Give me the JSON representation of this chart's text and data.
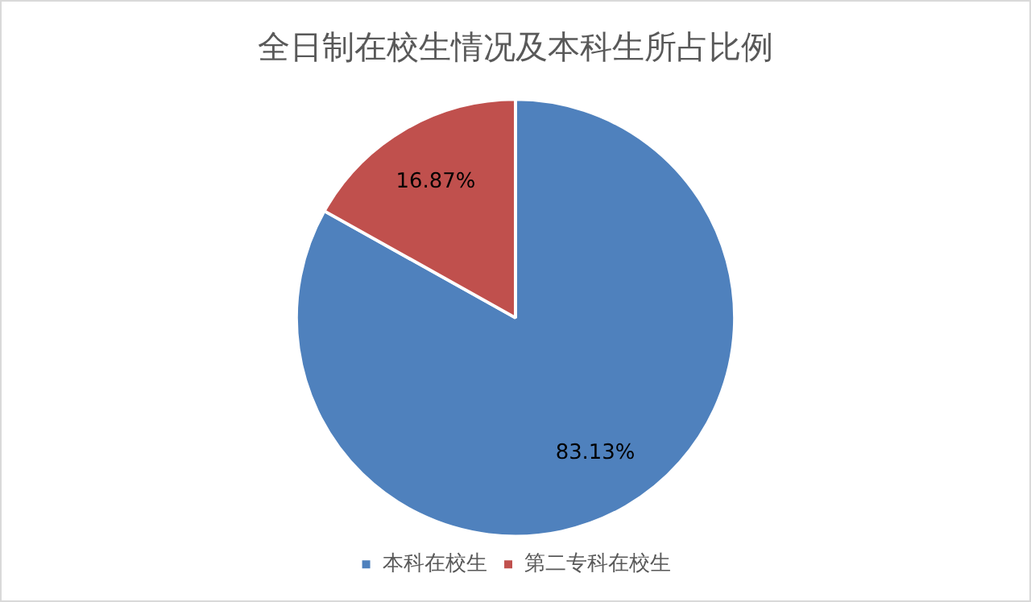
{
  "chart_data": {
    "type": "pie",
    "title": "全日制在校生情况及本科生所占比例",
    "categories": [
      "本科在校生",
      "第二专科在校生"
    ],
    "values": [
      83.13,
      16.87
    ],
    "colors": [
      "#4f81bd",
      "#c0504d"
    ],
    "value_labels": [
      "83.13%",
      "16.87%"
    ],
    "legend": "bottom"
  }
}
